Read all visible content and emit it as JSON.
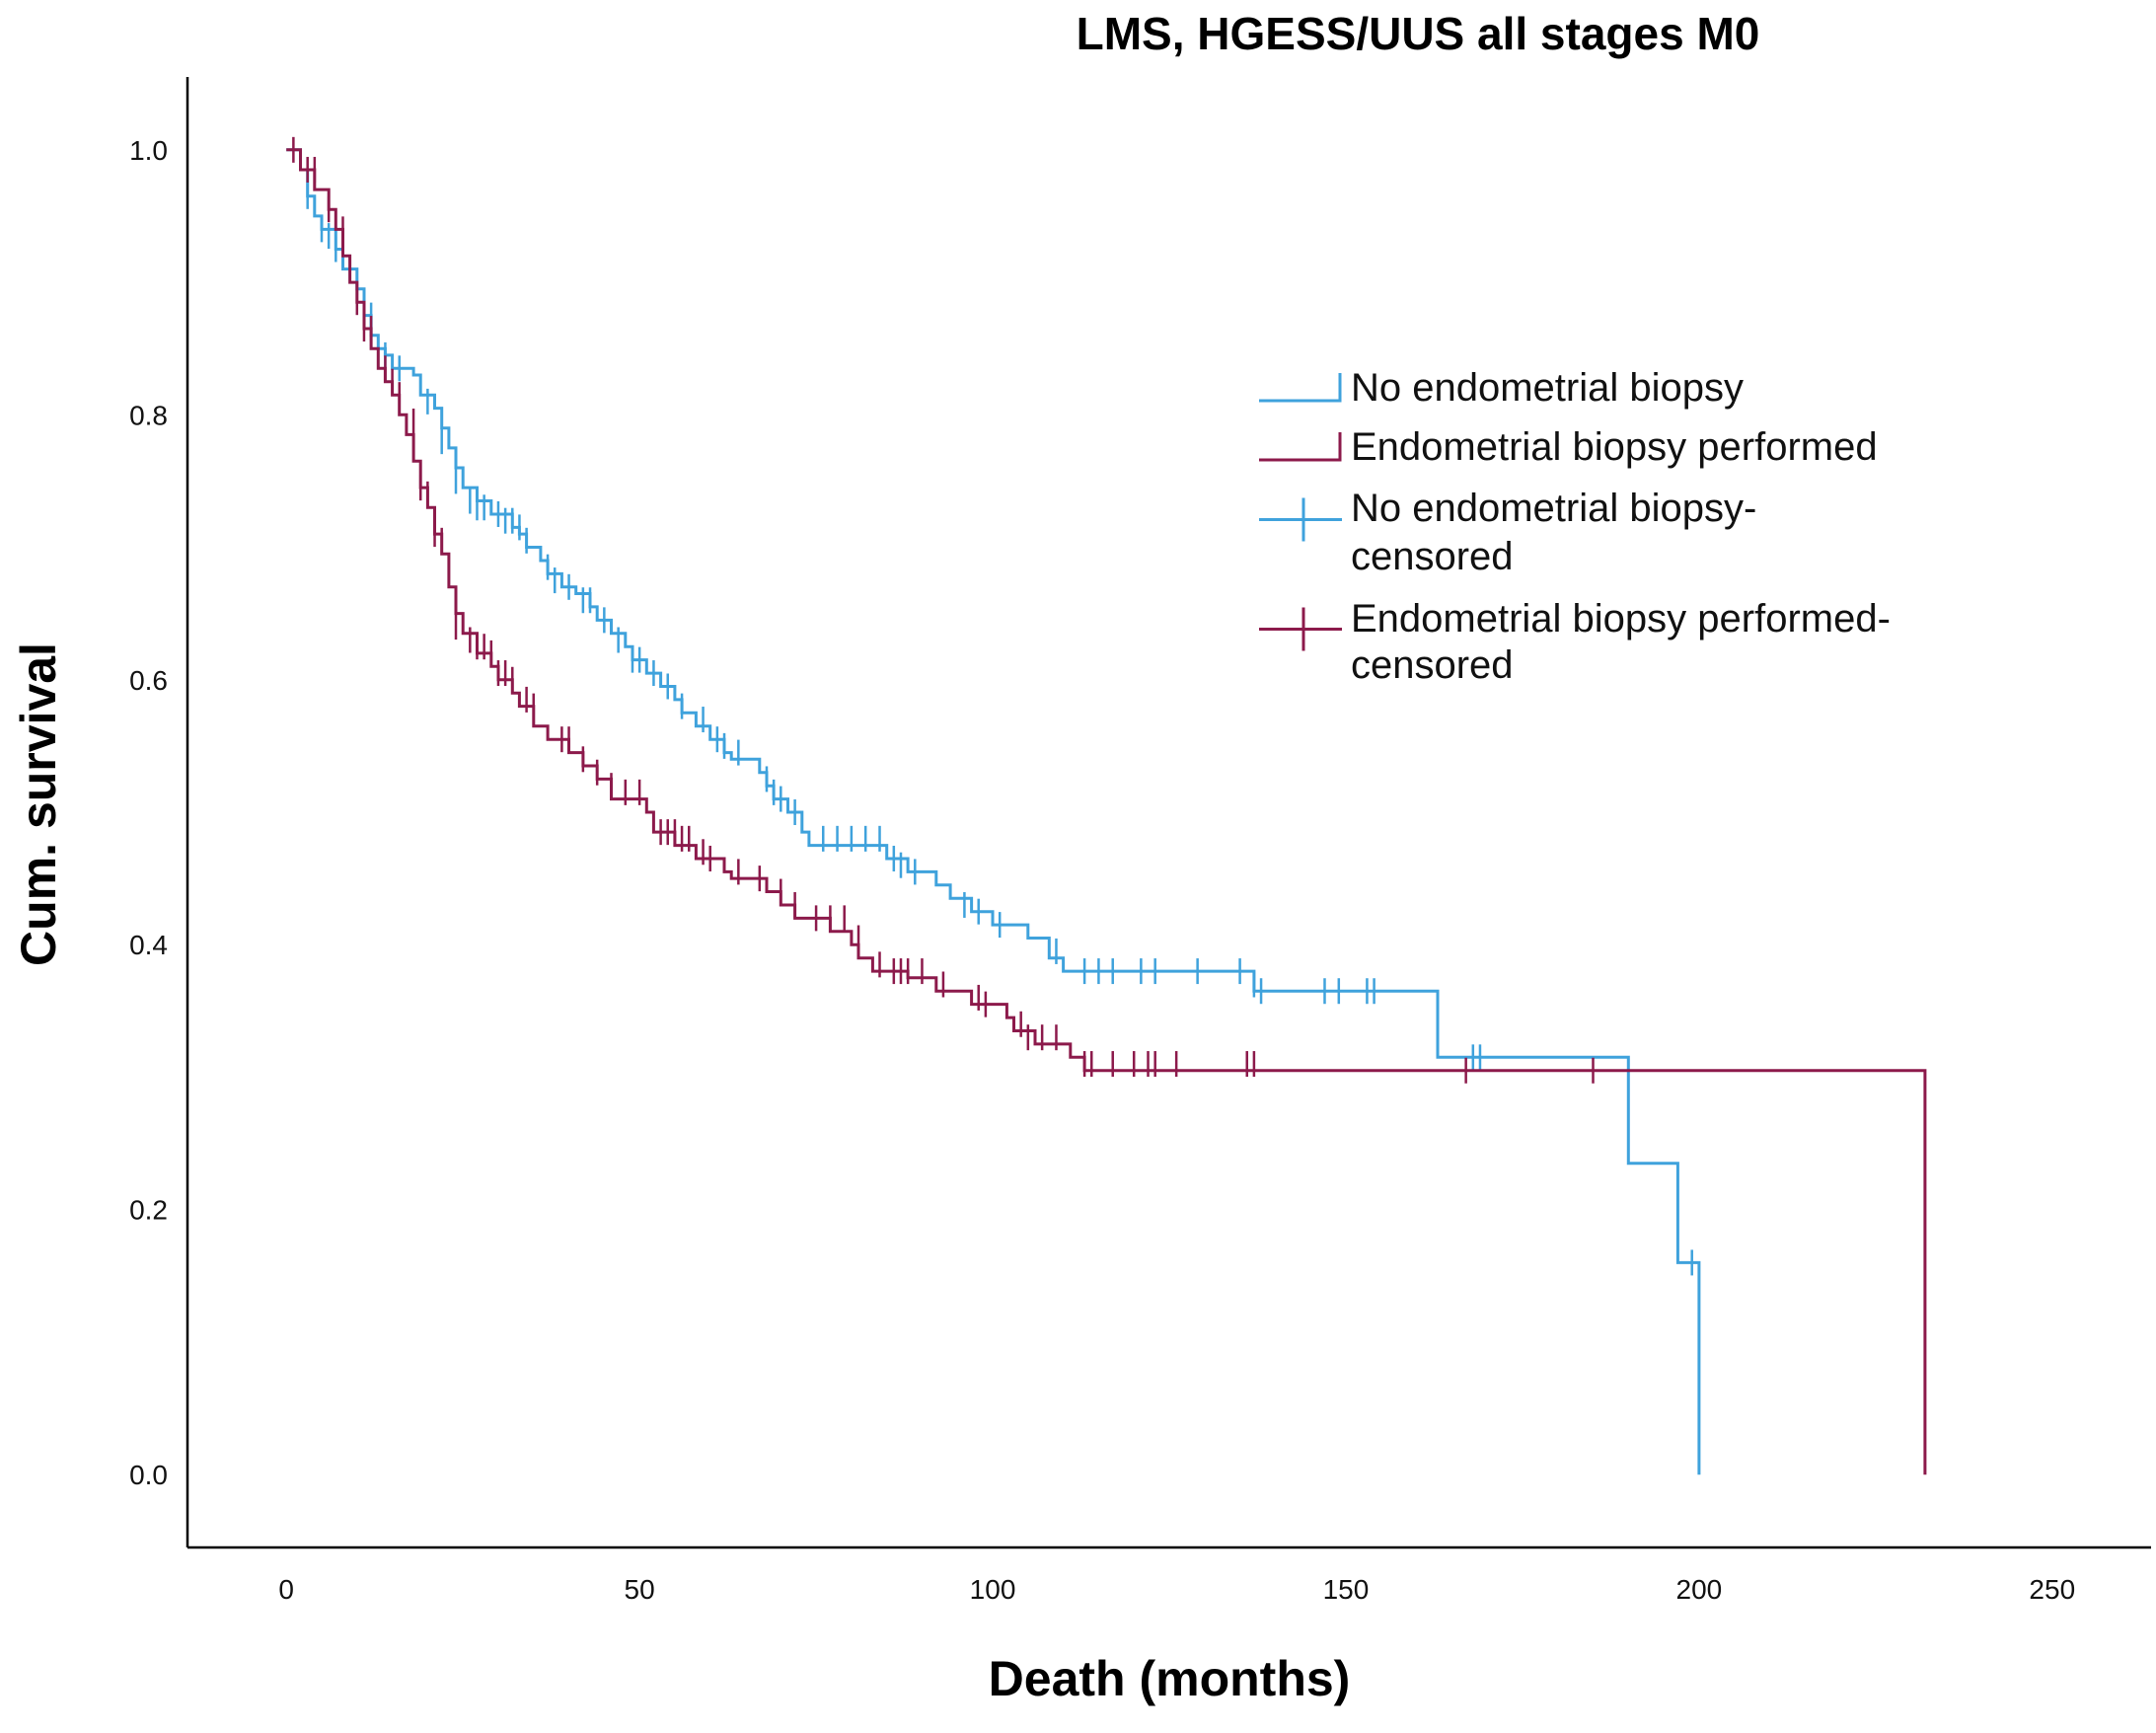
{
  "chart_data": {
    "type": "line",
    "subtype": "kaplan-meier",
    "title": "LMS, HGESS/UUS all stages M0",
    "xlabel": "Death (months)",
    "ylabel": "Cum. survival",
    "xlim": [
      -14,
      264
    ],
    "ylim": [
      -0.055,
      1.055
    ],
    "xticks": [
      0,
      50,
      100,
      150,
      200,
      250
    ],
    "yticks": [
      0.0,
      0.2,
      0.4,
      0.6,
      0.8,
      1.0
    ],
    "ytick_labels": [
      "0.0",
      "0.2",
      "0.4",
      "0.6",
      "0.8",
      "1.0"
    ],
    "grid": false,
    "legend_position": "upper-right",
    "legend": [
      {
        "label": "No endometrial biopsy",
        "kind": "line",
        "series": 0
      },
      {
        "label": "Endometrial biopsy performed",
        "kind": "line",
        "series": 1
      },
      {
        "label": "No endometrial biopsy-",
        "label2": "censored",
        "kind": "censor",
        "series": 0
      },
      {
        "label": "Endometrial biopsy performed-",
        "label2": "censored",
        "kind": "censor",
        "series": 1
      }
    ],
    "series": [
      {
        "name": "No endometrial biopsy",
        "color": "#3fa2dc",
        "steps": [
          [
            0,
            1.0
          ],
          [
            2,
            0.985
          ],
          [
            3,
            0.965
          ],
          [
            4,
            0.95
          ],
          [
            5,
            0.94
          ],
          [
            7,
            0.925
          ],
          [
            8,
            0.91
          ],
          [
            10,
            0.895
          ],
          [
            11,
            0.875
          ],
          [
            12,
            0.86
          ],
          [
            13,
            0.85
          ],
          [
            14,
            0.845
          ],
          [
            15,
            0.835
          ],
          [
            18,
            0.83
          ],
          [
            19,
            0.815
          ],
          [
            21,
            0.805
          ],
          [
            22,
            0.79
          ],
          [
            23,
            0.775
          ],
          [
            24,
            0.76
          ],
          [
            25,
            0.745
          ],
          [
            27,
            0.735
          ],
          [
            29,
            0.725
          ],
          [
            32,
            0.715
          ],
          [
            33,
            0.71
          ],
          [
            34,
            0.7
          ],
          [
            36,
            0.69
          ],
          [
            37,
            0.68
          ],
          [
            39,
            0.67
          ],
          [
            41,
            0.665
          ],
          [
            43,
            0.655
          ],
          [
            44,
            0.645
          ],
          [
            46,
            0.635
          ],
          [
            48,
            0.625
          ],
          [
            49,
            0.615
          ],
          [
            51,
            0.605
          ],
          [
            53,
            0.595
          ],
          [
            55,
            0.585
          ],
          [
            56,
            0.575
          ],
          [
            58,
            0.565
          ],
          [
            60,
            0.555
          ],
          [
            62,
            0.545
          ],
          [
            63,
            0.54
          ],
          [
            67,
            0.53
          ],
          [
            68,
            0.52
          ],
          [
            69,
            0.51
          ],
          [
            71,
            0.5
          ],
          [
            73,
            0.485
          ],
          [
            74,
            0.475
          ],
          [
            85,
            0.465
          ],
          [
            88,
            0.455
          ],
          [
            92,
            0.445
          ],
          [
            94,
            0.435
          ],
          [
            97,
            0.425
          ],
          [
            100,
            0.415
          ],
          [
            105,
            0.405
          ],
          [
            108,
            0.39
          ],
          [
            110,
            0.38
          ],
          [
            137,
            0.365
          ],
          [
            163,
            0.315
          ],
          [
            190,
            0.235
          ],
          [
            197,
            0.16
          ],
          [
            200,
            0.0
          ]
        ],
        "censored": [
          [
            3,
            0.965
          ],
          [
            5,
            0.94
          ],
          [
            6,
            0.935
          ],
          [
            7,
            0.925
          ],
          [
            9,
            0.91
          ],
          [
            10,
            0.9
          ],
          [
            12,
            0.875
          ],
          [
            14,
            0.845
          ],
          [
            16,
            0.835
          ],
          [
            20,
            0.81
          ],
          [
            22,
            0.78
          ],
          [
            24,
            0.75
          ],
          [
            26,
            0.735
          ],
          [
            27,
            0.73
          ],
          [
            28,
            0.73
          ],
          [
            30,
            0.725
          ],
          [
            31,
            0.72
          ],
          [
            32,
            0.72
          ],
          [
            33,
            0.715
          ],
          [
            34,
            0.705
          ],
          [
            37,
            0.685
          ],
          [
            38,
            0.675
          ],
          [
            40,
            0.67
          ],
          [
            42,
            0.66
          ],
          [
            43,
            0.66
          ],
          [
            45,
            0.645
          ],
          [
            47,
            0.63
          ],
          [
            49,
            0.615
          ],
          [
            50,
            0.615
          ],
          [
            52,
            0.605
          ],
          [
            54,
            0.595
          ],
          [
            56,
            0.58
          ],
          [
            59,
            0.57
          ],
          [
            61,
            0.555
          ],
          [
            62,
            0.55
          ],
          [
            64,
            0.545
          ],
          [
            68,
            0.525
          ],
          [
            69,
            0.515
          ],
          [
            70,
            0.51
          ],
          [
            72,
            0.5
          ],
          [
            76,
            0.48
          ],
          [
            78,
            0.48
          ],
          [
            80,
            0.48
          ],
          [
            82,
            0.48
          ],
          [
            84,
            0.48
          ],
          [
            86,
            0.465
          ],
          [
            87,
            0.46
          ],
          [
            89,
            0.455
          ],
          [
            96,
            0.43
          ],
          [
            98,
            0.425
          ],
          [
            101,
            0.415
          ],
          [
            109,
            0.395
          ],
          [
            113,
            0.38
          ],
          [
            115,
            0.38
          ],
          [
            117,
            0.38
          ],
          [
            121,
            0.38
          ],
          [
            123,
            0.38
          ],
          [
            129,
            0.38
          ],
          [
            135,
            0.38
          ],
          [
            137,
            0.37
          ],
          [
            138,
            0.365
          ],
          [
            147,
            0.365
          ],
          [
            149,
            0.365
          ],
          [
            153,
            0.365
          ],
          [
            154,
            0.365
          ],
          [
            168,
            0.315
          ],
          [
            169,
            0.315
          ],
          [
            199,
            0.16
          ]
        ]
      },
      {
        "name": "Endometrial biopsy performed",
        "color": "#8c1a4b",
        "steps": [
          [
            0,
            1.0
          ],
          [
            2,
            0.985
          ],
          [
            4,
            0.97
          ],
          [
            6,
            0.955
          ],
          [
            7,
            0.94
          ],
          [
            8,
            0.92
          ],
          [
            9,
            0.9
          ],
          [
            10,
            0.885
          ],
          [
            11,
            0.865
          ],
          [
            12,
            0.85
          ],
          [
            13,
            0.835
          ],
          [
            14,
            0.825
          ],
          [
            15,
            0.815
          ],
          [
            16,
            0.8
          ],
          [
            17,
            0.785
          ],
          [
            18,
            0.765
          ],
          [
            19,
            0.745
          ],
          [
            20,
            0.73
          ],
          [
            21,
            0.71
          ],
          [
            22,
            0.695
          ],
          [
            23,
            0.67
          ],
          [
            24,
            0.65
          ],
          [
            25,
            0.635
          ],
          [
            27,
            0.62
          ],
          [
            29,
            0.61
          ],
          [
            30,
            0.6
          ],
          [
            32,
            0.59
          ],
          [
            33,
            0.58
          ],
          [
            35,
            0.565
          ],
          [
            37,
            0.555
          ],
          [
            40,
            0.545
          ],
          [
            42,
            0.535
          ],
          [
            44,
            0.525
          ],
          [
            46,
            0.51
          ],
          [
            51,
            0.5
          ],
          [
            52,
            0.485
          ],
          [
            55,
            0.475
          ],
          [
            58,
            0.465
          ],
          [
            62,
            0.455
          ],
          [
            63,
            0.45
          ],
          [
            68,
            0.44
          ],
          [
            70,
            0.43
          ],
          [
            72,
            0.42
          ],
          [
            77,
            0.41
          ],
          [
            80,
            0.4
          ],
          [
            81,
            0.39
          ],
          [
            83,
            0.38
          ],
          [
            88,
            0.375
          ],
          [
            92,
            0.365
          ],
          [
            97,
            0.355
          ],
          [
            102,
            0.345
          ],
          [
            103,
            0.335
          ],
          [
            106,
            0.325
          ],
          [
            111,
            0.315
          ],
          [
            113,
            0.305
          ],
          [
            232,
            0.0
          ]
        ],
        "censored": [
          [
            1,
            1.0
          ],
          [
            3,
            0.985
          ],
          [
            4,
            0.985
          ],
          [
            6,
            0.955
          ],
          [
            8,
            0.94
          ],
          [
            10,
            0.885
          ],
          [
            11,
            0.865
          ],
          [
            12,
            0.865
          ],
          [
            14,
            0.835
          ],
          [
            15,
            0.825
          ],
          [
            16,
            0.815
          ],
          [
            18,
            0.795
          ],
          [
            19,
            0.745
          ],
          [
            20,
            0.74
          ],
          [
            21,
            0.71
          ],
          [
            22,
            0.705
          ],
          [
            24,
            0.64
          ],
          [
            26,
            0.63
          ],
          [
            27,
            0.625
          ],
          [
            28,
            0.625
          ],
          [
            29,
            0.62
          ],
          [
            30,
            0.605
          ],
          [
            31,
            0.605
          ],
          [
            32,
            0.6
          ],
          [
            34,
            0.585
          ],
          [
            35,
            0.58
          ],
          [
            39,
            0.555
          ],
          [
            40,
            0.555
          ],
          [
            42,
            0.54
          ],
          [
            44,
            0.53
          ],
          [
            46,
            0.52
          ],
          [
            48,
            0.515
          ],
          [
            50,
            0.515
          ],
          [
            53,
            0.485
          ],
          [
            54,
            0.485
          ],
          [
            55,
            0.485
          ],
          [
            56,
            0.48
          ],
          [
            57,
            0.48
          ],
          [
            59,
            0.47
          ],
          [
            60,
            0.465
          ],
          [
            64,
            0.455
          ],
          [
            67,
            0.45
          ],
          [
            70,
            0.44
          ],
          [
            72,
            0.43
          ],
          [
            75,
            0.42
          ],
          [
            77,
            0.42
          ],
          [
            79,
            0.42
          ],
          [
            81,
            0.405
          ],
          [
            84,
            0.385
          ],
          [
            86,
            0.38
          ],
          [
            87,
            0.38
          ],
          [
            88,
            0.38
          ],
          [
            90,
            0.38
          ],
          [
            93,
            0.37
          ],
          [
            98,
            0.36
          ],
          [
            99,
            0.355
          ],
          [
            104,
            0.34
          ],
          [
            105,
            0.33
          ],
          [
            107,
            0.33
          ],
          [
            109,
            0.33
          ],
          [
            113,
            0.31
          ],
          [
            114,
            0.31
          ],
          [
            117,
            0.31
          ],
          [
            120,
            0.31
          ],
          [
            122,
            0.31
          ],
          [
            123,
            0.31
          ],
          [
            126,
            0.31
          ],
          [
            136,
            0.31
          ],
          [
            137,
            0.31
          ],
          [
            167,
            0.305
          ],
          [
            185,
            0.305
          ]
        ]
      }
    ]
  }
}
